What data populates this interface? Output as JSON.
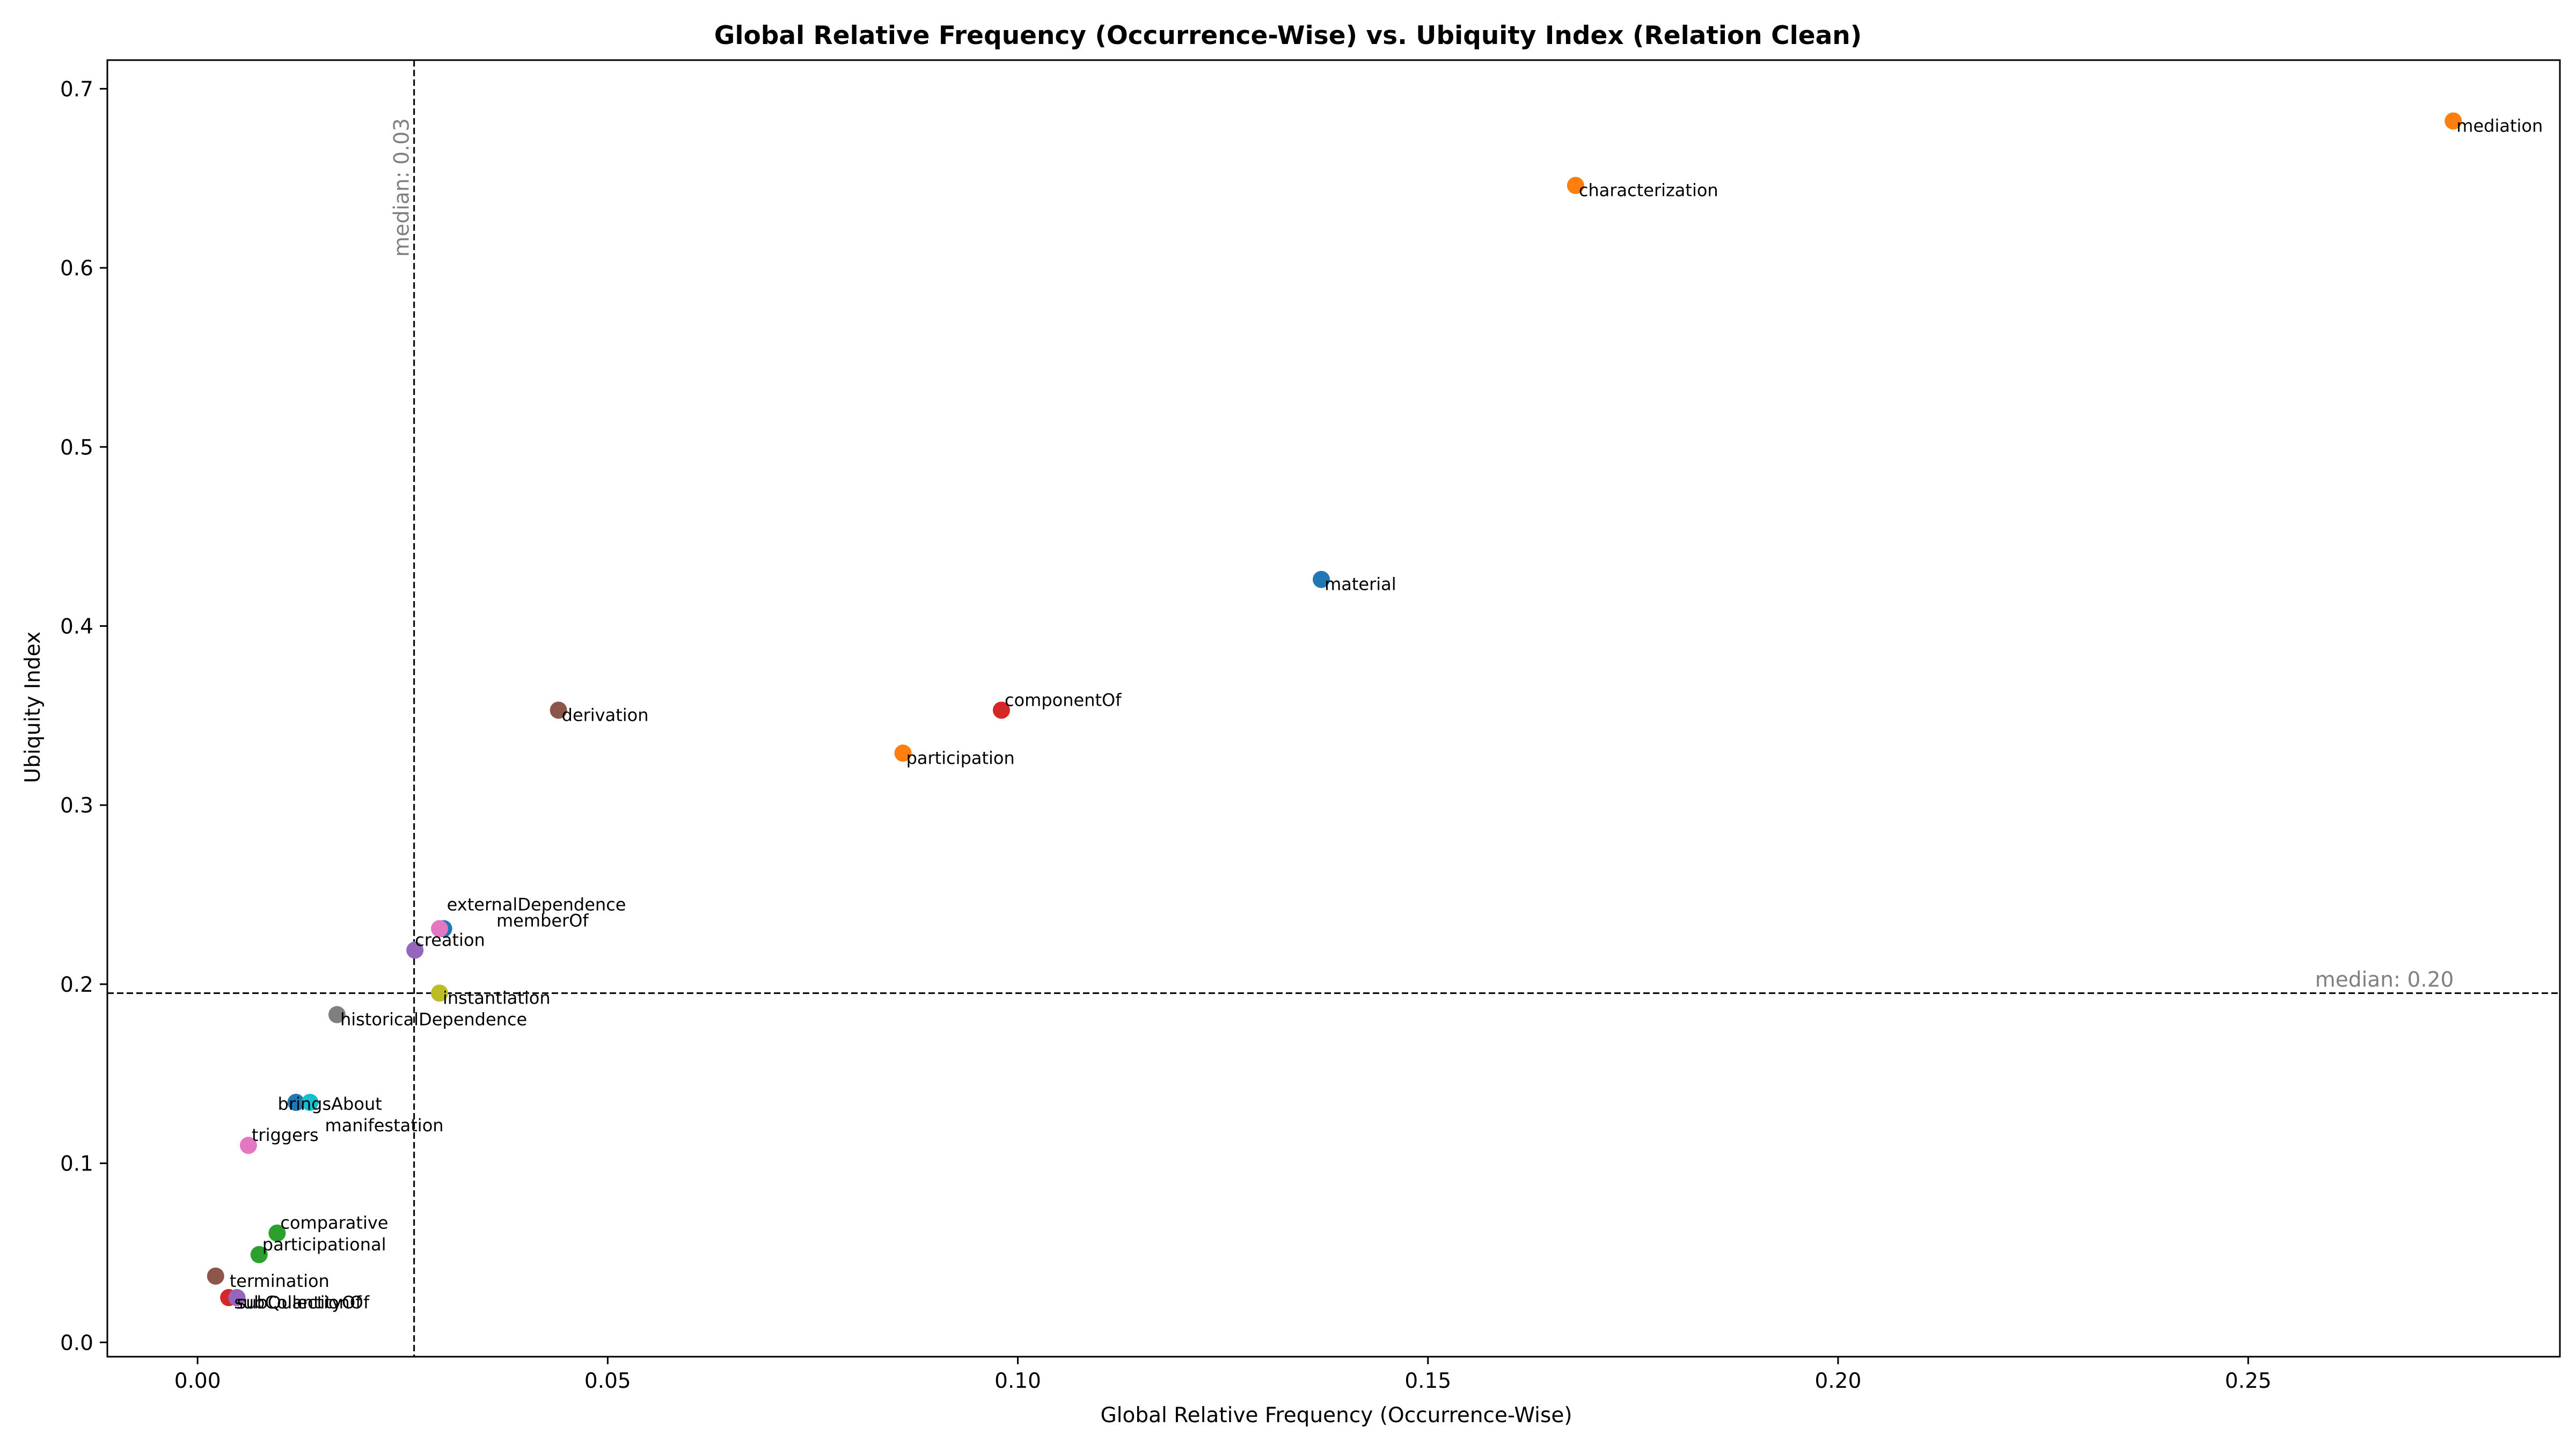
{
  "chart_data": {
    "type": "scatter",
    "title": "Global Relative Frequency (Occurrence-Wise) vs. Ubiquity Index (Relation Clean)",
    "xlabel": "Global Relative Frequency (Occurrence-Wise)",
    "ylabel": "Ubiquity Index",
    "xlim": [
      -0.011,
      0.288
    ],
    "ylim": [
      -0.008,
      0.716
    ],
    "xticks": [
      0.0,
      0.05,
      0.1,
      0.15,
      0.2,
      0.25
    ],
    "xtick_labels": [
      "0.00",
      "0.05",
      "0.10",
      "0.15",
      "0.20",
      "0.25"
    ],
    "yticks": [
      0.0,
      0.1,
      0.2,
      0.3,
      0.4,
      0.5,
      0.6,
      0.7
    ],
    "ytick_labels": [
      "0.0",
      "0.1",
      "0.2",
      "0.3",
      "0.4",
      "0.5",
      "0.6",
      "0.7"
    ],
    "grid": false,
    "median_x": {
      "value": 0.0264,
      "label": "median: 0.03"
    },
    "median_y": {
      "value": 0.195,
      "label": "median: 0.20"
    },
    "points": [
      {
        "name": "mediation",
        "x": 0.275,
        "y": 0.682,
        "color": "#ff7f0e"
      },
      {
        "name": "characterization",
        "x": 0.168,
        "y": 0.646,
        "color": "#ff7f0e"
      },
      {
        "name": "material",
        "x": 0.137,
        "y": 0.426,
        "color": "#1f77b4"
      },
      {
        "name": "componentOf",
        "x": 0.098,
        "y": 0.353,
        "color": "#d62728"
      },
      {
        "name": "derivation",
        "x": 0.044,
        "y": 0.353,
        "color": "#8c564b"
      },
      {
        "name": "participation",
        "x": 0.086,
        "y": 0.329,
        "color": "#ff7f0e"
      },
      {
        "name": "externalDependence",
        "x": 0.03,
        "y": 0.231,
        "color": "#1f77b4"
      },
      {
        "name": "memberOf",
        "x": 0.0295,
        "y": 0.231,
        "color": "#e377c2"
      },
      {
        "name": "creation",
        "x": 0.0265,
        "y": 0.219,
        "color": "#9467bd"
      },
      {
        "name": "instantiation",
        "x": 0.0295,
        "y": 0.195,
        "color": "#bcbd22"
      },
      {
        "name": "historicalDependence",
        "x": 0.017,
        "y": 0.183,
        "color": "#7f7f7f"
      },
      {
        "name": "bringsAbout",
        "x": 0.012,
        "y": 0.134,
        "color": "#1f77b4"
      },
      {
        "name": "manifestation",
        "x": 0.0137,
        "y": 0.134,
        "color": "#17becf"
      },
      {
        "name": "triggers",
        "x": 0.0062,
        "y": 0.11,
        "color": "#e377c2"
      },
      {
        "name": "comparative",
        "x": 0.0097,
        "y": 0.061,
        "color": "#2ca02c"
      },
      {
        "name": "participational",
        "x": 0.0075,
        "y": 0.049,
        "color": "#2ca02c"
      },
      {
        "name": "termination",
        "x": 0.0022,
        "y": 0.037,
        "color": "#8c564b"
      },
      {
        "name": "subCollectionOf",
        "x": 0.0038,
        "y": 0.025,
        "color": "#d62728"
      },
      {
        "name": "subQuantityOf",
        "x": 0.0048,
        "y": 0.025,
        "color": "#9467bd"
      }
    ]
  }
}
